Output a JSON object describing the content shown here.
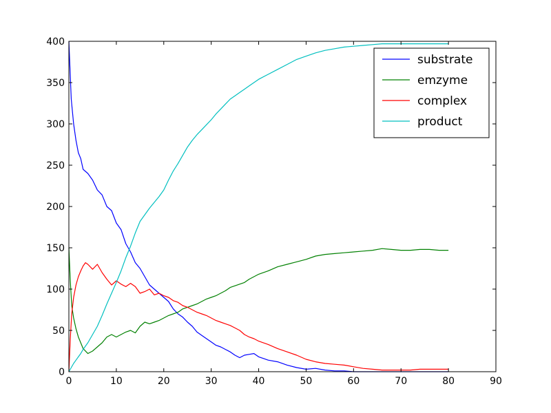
{
  "chart_data": {
    "type": "line",
    "title": "",
    "xlabel": "",
    "ylabel": "",
    "xlim": [
      0,
      90
    ],
    "ylim": [
      0,
      400
    ],
    "xticks": [
      0,
      10,
      20,
      30,
      40,
      50,
      60,
      70,
      80,
      90
    ],
    "yticks": [
      0,
      50,
      100,
      150,
      200,
      250,
      300,
      350,
      400
    ],
    "grid": false,
    "legend_position": "top-right",
    "series": [
      {
        "name": "substrate",
        "color": "#0000ff",
        "x": [
          0,
          0.5,
          1,
          1.5,
          2,
          2.5,
          3,
          4,
          5,
          6,
          7,
          8,
          9,
          10,
          11,
          12,
          13,
          14,
          15,
          16,
          17,
          18,
          19,
          20,
          21,
          22,
          23,
          24,
          25,
          26,
          27,
          28,
          29,
          30,
          31,
          32,
          33,
          34,
          35,
          36,
          37,
          38,
          39,
          40,
          42,
          44,
          46,
          48,
          50,
          52,
          54,
          56,
          58,
          60,
          62,
          64,
          66,
          68,
          70,
          72,
          74,
          76,
          78,
          80
        ],
        "y": [
          400,
          330,
          300,
          280,
          265,
          258,
          245,
          240,
          232,
          220,
          214,
          200,
          195,
          180,
          172,
          155,
          145,
          132,
          125,
          115,
          105,
          100,
          95,
          90,
          85,
          76,
          70,
          66,
          60,
          55,
          48,
          44,
          40,
          36,
          32,
          30,
          27,
          24,
          20,
          17,
          20,
          21,
          22,
          18,
          14,
          12,
          8,
          5,
          3,
          4,
          2,
          1,
          1,
          0,
          0,
          0,
          0,
          0,
          0,
          0,
          0,
          0,
          0,
          0
        ]
      },
      {
        "name": "emzyme",
        "color": "#008000",
        "x": [
          0,
          0.3,
          0.6,
          1,
          1.5,
          2,
          2.5,
          3,
          4,
          5,
          6,
          7,
          8,
          9,
          10,
          11,
          12,
          13,
          14,
          15,
          16,
          17,
          18,
          19,
          20,
          21,
          22,
          23,
          24,
          25,
          26,
          27,
          28,
          29,
          30,
          31,
          32,
          33,
          34,
          35,
          36,
          37,
          38,
          39,
          40,
          42,
          44,
          46,
          48,
          50,
          52,
          54,
          56,
          58,
          60,
          62,
          64,
          66,
          68,
          70,
          72,
          74,
          76,
          78,
          80
        ],
        "y": [
          150,
          110,
          80,
          65,
          52,
          42,
          35,
          28,
          22,
          25,
          30,
          35,
          42,
          45,
          42,
          45,
          48,
          50,
          47,
          55,
          60,
          58,
          60,
          62,
          65,
          68,
          70,
          72,
          76,
          78,
          80,
          82,
          85,
          88,
          90,
          92,
          95,
          98,
          102,
          104,
          106,
          108,
          112,
          115,
          118,
          122,
          127,
          130,
          133,
          136,
          140,
          142,
          143,
          144,
          145,
          146,
          147,
          149,
          148,
          147,
          147,
          148,
          148,
          147,
          147
        ]
      },
      {
        "name": "complex",
        "color": "#ff0000",
        "x": [
          0,
          0.3,
          0.6,
          1,
          1.5,
          2,
          2.5,
          3,
          3.5,
          4,
          5,
          6,
          7,
          8,
          9,
          10,
          11,
          12,
          13,
          14,
          15,
          16,
          17,
          18,
          19,
          20,
          21,
          22,
          23,
          24,
          25,
          26,
          27,
          28,
          29,
          30,
          31,
          32,
          33,
          34,
          35,
          36,
          37,
          38,
          39,
          40,
          42,
          44,
          46,
          48,
          50,
          52,
          54,
          56,
          58,
          60,
          62,
          64,
          66,
          68,
          70,
          72,
          74,
          76,
          78,
          80
        ],
        "y": [
          0,
          40,
          70,
          90,
          105,
          115,
          122,
          128,
          132,
          130,
          124,
          130,
          120,
          112,
          105,
          110,
          106,
          103,
          107,
          103,
          95,
          97,
          100,
          93,
          95,
          92,
          90,
          86,
          84,
          80,
          78,
          75,
          72,
          70,
          68,
          65,
          62,
          60,
          58,
          56,
          53,
          50,
          45,
          42,
          40,
          37,
          33,
          28,
          24,
          20,
          15,
          12,
          10,
          9,
          8,
          6,
          4,
          3,
          2,
          2,
          2,
          2,
          3,
          3,
          3,
          3
        ]
      },
      {
        "name": "product",
        "color": "#00bfbf",
        "x": [
          0,
          0.5,
          1,
          1.5,
          2,
          2.5,
          3,
          4,
          5,
          6,
          7,
          8,
          9,
          10,
          11,
          12,
          13,
          14,
          15,
          16,
          17,
          18,
          19,
          20,
          21,
          22,
          23,
          24,
          25,
          26,
          27,
          28,
          29,
          30,
          31,
          32,
          33,
          34,
          35,
          36,
          37,
          38,
          39,
          40,
          42,
          44,
          46,
          48,
          50,
          52,
          54,
          56,
          58,
          60,
          62,
          64,
          66,
          68,
          70,
          72,
          74,
          76,
          78,
          80
        ],
        "y": [
          0,
          5,
          10,
          14,
          18,
          22,
          27,
          35,
          45,
          55,
          68,
          82,
          95,
          108,
          122,
          138,
          152,
          168,
          182,
          190,
          198,
          205,
          212,
          220,
          232,
          243,
          252,
          262,
          272,
          280,
          287,
          293,
          299,
          305,
          312,
          318,
          324,
          330,
          334,
          338,
          342,
          346,
          350,
          354,
          360,
          366,
          372,
          378,
          382,
          386,
          389,
          391,
          393,
          394,
          395,
          396,
          397,
          397,
          397,
          397,
          397,
          397,
          397,
          397
        ]
      }
    ]
  }
}
